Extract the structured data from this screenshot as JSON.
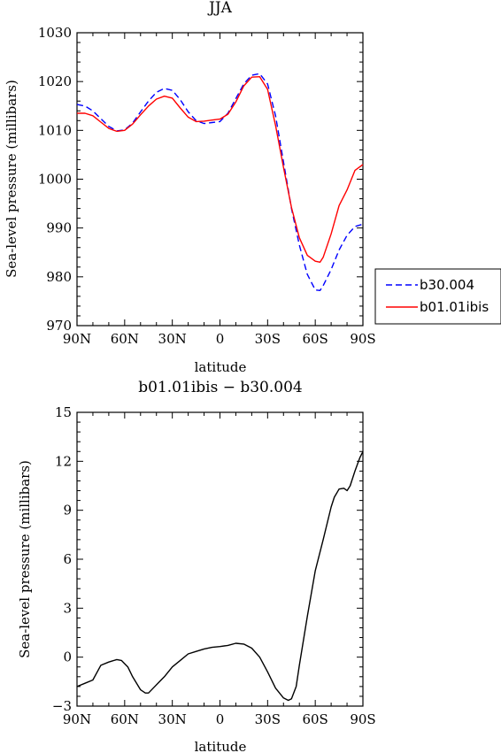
{
  "chart_data": [
    {
      "type": "line",
      "title": "JJA",
      "xlabel": "latitude",
      "ylabel": "Sea-level pressure (millibars)",
      "x_ticks": [
        "90N",
        "60N",
        "30N",
        "0",
        "30S",
        "60S",
        "90S"
      ],
      "y_ticks": [
        "970",
        "980",
        "990",
        "1000",
        "1010",
        "1020",
        "1030"
      ],
      "xlim": [
        -90,
        90
      ],
      "ylim": [
        970,
        1030
      ],
      "legend_position": "right",
      "series": [
        {
          "name": "b30.004",
          "color": "#0000ff",
          "style": "dashed",
          "x": [
            -90,
            -85,
            -80,
            -75,
            -70,
            -65,
            -60,
            -55,
            -50,
            -45,
            -40,
            -35,
            -30,
            -25,
            -20,
            -15,
            -10,
            -5,
            0,
            5,
            10,
            15,
            20,
            25,
            30,
            35,
            40,
            45,
            50,
            55,
            60,
            63,
            65,
            70,
            75,
            80,
            85,
            90
          ],
          "y": [
            1015.3,
            1015.0,
            1014.0,
            1012.4,
            1010.8,
            1009.9,
            1010.1,
            1011.5,
            1013.8,
            1016.0,
            1017.8,
            1018.6,
            1018.2,
            1016.3,
            1013.8,
            1012.0,
            1011.4,
            1011.6,
            1011.8,
            1013.5,
            1016.5,
            1019.5,
            1021.3,
            1021.6,
            1019.5,
            1013.0,
            1003.5,
            994.0,
            986.5,
            980.5,
            977.3,
            977.2,
            978.2,
            981.5,
            985.5,
            988.5,
            990.3,
            990.8
          ]
        },
        {
          "name": "b01.01ibis",
          "color": "#ff0000",
          "style": "solid",
          "x": [
            -90,
            -85,
            -80,
            -75,
            -70,
            -65,
            -60,
            -55,
            -50,
            -45,
            -40,
            -35,
            -30,
            -25,
            -20,
            -15,
            -10,
            -5,
            0,
            5,
            10,
            15,
            20,
            25,
            30,
            35,
            40,
            45,
            50,
            55,
            60,
            63,
            65,
            70,
            75,
            80,
            85,
            90
          ],
          "y": [
            1013.5,
            1013.5,
            1013.0,
            1011.7,
            1010.4,
            1009.8,
            1010.0,
            1011.3,
            1013.2,
            1015.0,
            1016.4,
            1017.0,
            1016.6,
            1014.6,
            1012.7,
            1011.8,
            1011.9,
            1012.1,
            1012.3,
            1013.3,
            1015.8,
            1019.1,
            1020.9,
            1021.0,
            1018.4,
            1011.0,
            1002.4,
            994.2,
            988.0,
            984.4,
            983.2,
            983.0,
            984.0,
            988.8,
            994.6,
            997.8,
            1001.8,
            1003.0
          ]
        }
      ]
    },
    {
      "type": "line",
      "title": "b01.01ibis − b30.004",
      "xlabel": "latitude",
      "ylabel": "Sea-level pressure (millibars)",
      "x_ticks": [
        "90N",
        "60N",
        "30N",
        "0",
        "30S",
        "60S",
        "90S"
      ],
      "y_ticks": [
        "−3",
        "0",
        "3",
        "6",
        "9",
        "12",
        "15"
      ],
      "xlim": [
        -90,
        90
      ],
      "ylim": [
        -3,
        15
      ],
      "series": [
        {
          "color": "#000000",
          "style": "solid",
          "x": [
            -90,
            -85,
            -80,
            -75,
            -70,
            -65,
            -62,
            -58,
            -55,
            -50,
            -47,
            -45,
            -42,
            -38,
            -35,
            -30,
            -25,
            -20,
            -15,
            -10,
            -5,
            0,
            5,
            10,
            15,
            20,
            25,
            30,
            35,
            40,
            43,
            45,
            48,
            50,
            55,
            60,
            65,
            70,
            72,
            75,
            78,
            80,
            82,
            85,
            88,
            90
          ],
          "y": [
            -1.8,
            -1.6,
            -1.4,
            -0.5,
            -0.3,
            -0.15,
            -0.2,
            -0.6,
            -1.2,
            -2.0,
            -2.2,
            -2.2,
            -1.9,
            -1.5,
            -1.2,
            -0.6,
            -0.2,
            0.2,
            0.35,
            0.5,
            0.6,
            0.65,
            0.72,
            0.85,
            0.8,
            0.55,
            0.0,
            -0.9,
            -1.9,
            -2.5,
            -2.65,
            -2.55,
            -1.8,
            -0.5,
            2.5,
            5.3,
            7.2,
            9.2,
            9.8,
            10.3,
            10.35,
            10.2,
            10.5,
            11.4,
            12.2,
            12.6
          ]
        }
      ]
    }
  ],
  "legend": {
    "entries": [
      "b30.004",
      "b01.01ibis"
    ]
  }
}
